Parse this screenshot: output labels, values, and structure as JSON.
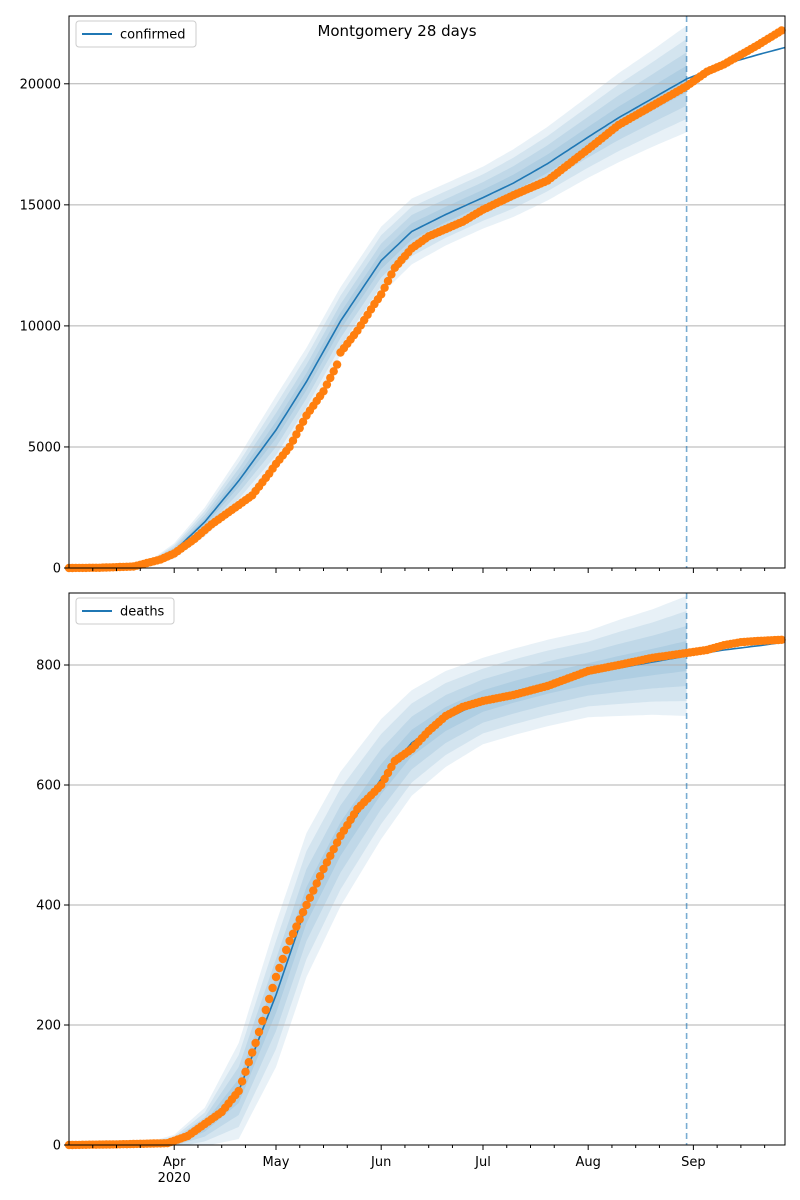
{
  "title": "Montgomery 28 days",
  "colors": {
    "model": "#1f77b4",
    "observed": "#ff7f0e",
    "band": "#1f77b4",
    "grid": "#b0b0b0"
  },
  "x_axis": {
    "start": "2020-03-01",
    "end": "2020-09-28",
    "cutoff": "2020-08-30",
    "major_ticks": [
      {
        "date": "2020-04-01",
        "label": "Apr",
        "year": "2020"
      },
      {
        "date": "2020-05-01",
        "label": "May",
        "year": ""
      },
      {
        "date": "2020-06-01",
        "label": "Jun",
        "year": ""
      },
      {
        "date": "2020-07-01",
        "label": "Jul",
        "year": ""
      },
      {
        "date": "2020-08-01",
        "label": "Aug",
        "year": ""
      },
      {
        "date": "2020-09-01",
        "label": "Sep",
        "year": ""
      }
    ],
    "minor_ticks": [
      "2020-03-08",
      "2020-03-15",
      "2020-03-22",
      "2020-04-08",
      "2020-04-15",
      "2020-04-22",
      "2020-05-08",
      "2020-05-15",
      "2020-05-22",
      "2020-06-08",
      "2020-06-15",
      "2020-06-22",
      "2020-07-08",
      "2020-07-15",
      "2020-07-22",
      "2020-08-08",
      "2020-08-15",
      "2020-08-22",
      "2020-09-08",
      "2020-09-15",
      "2020-09-22"
    ]
  },
  "chart_data": [
    {
      "type": "line",
      "legend": "confirmed",
      "legend_position": "top-left",
      "grid": "horizontal",
      "ylim": [
        0,
        22800
      ],
      "yticks": [
        0,
        5000,
        10000,
        15000,
        20000
      ],
      "ytick_labels": [
        "0",
        "5000",
        "10000",
        "15000",
        "20000"
      ],
      "model": {
        "x": [
          "2020-03-01",
          "2020-03-15",
          "2020-03-25",
          "2020-04-01",
          "2020-04-10",
          "2020-04-20",
          "2020-05-01",
          "2020-05-10",
          "2020-05-20",
          "2020-06-01",
          "2020-06-10",
          "2020-06-20",
          "2020-07-01",
          "2020-07-10",
          "2020-07-20",
          "2020-08-01",
          "2020-08-10",
          "2020-08-20",
          "2020-08-30",
          "2020-09-10",
          "2020-09-20",
          "2020-09-28"
        ],
        "y": [
          0,
          20,
          200,
          700,
          1900,
          3600,
          5700,
          7700,
          10200,
          12700,
          13900,
          14600,
          15300,
          15900,
          16700,
          17800,
          18600,
          19400,
          20200,
          20800,
          21200,
          21500
        ],
        "band_half_widths": [
          [
            0,
            8,
            30,
            80,
            150,
            250,
            350,
            350,
            350,
            350,
            340,
            320,
            320,
            350,
            380,
            420,
            460,
            500,
            550
          ],
          [
            0,
            16,
            60,
            160,
            300,
            500,
            700,
            700,
            700,
            700,
            680,
            640,
            640,
            700,
            760,
            840,
            920,
            1000,
            1100
          ],
          [
            0,
            24,
            90,
            240,
            450,
            750,
            1050,
            1050,
            1050,
            1050,
            1020,
            960,
            960,
            1050,
            1140,
            1260,
            1380,
            1500,
            1650
          ],
          [
            0,
            32,
            120,
            320,
            600,
            1000,
            1400,
            1400,
            1400,
            1400,
            1360,
            1280,
            1280,
            1400,
            1520,
            1680,
            1840,
            2000,
            2200
          ]
        ]
      },
      "observed": {
        "x": [
          "2020-03-01",
          "2020-03-10",
          "2020-03-20",
          "2020-03-28",
          "2020-04-01",
          "2020-04-07",
          "2020-04-12",
          "2020-04-18",
          "2020-04-24",
          "2020-04-29",
          "2020-05-01",
          "2020-05-05",
          "2020-05-10",
          "2020-05-15",
          "2020-05-19",
          "2020-05-20",
          "2020-05-25",
          "2020-05-30",
          "2020-06-01",
          "2020-06-05",
          "2020-06-10",
          "2020-06-15",
          "2020-06-20",
          "2020-06-25",
          "2020-07-01",
          "2020-07-10",
          "2020-07-20",
          "2020-08-01",
          "2020-08-10",
          "2020-08-20",
          "2020-08-30",
          "2020-09-05",
          "2020-09-10",
          "2020-09-15",
          "2020-09-20",
          "2020-09-27"
        ],
        "y": [
          0,
          10,
          60,
          350,
          600,
          1200,
          1800,
          2400,
          3000,
          3900,
          4300,
          5000,
          6300,
          7300,
          8400,
          8900,
          9800,
          10900,
          11300,
          12400,
          13200,
          13700,
          14000,
          14300,
          14800,
          15400,
          16000,
          17300,
          18300,
          19100,
          19900,
          20500,
          20800,
          21200,
          21600,
          22200
        ]
      }
    },
    {
      "type": "line",
      "legend": "deaths",
      "legend_position": "top-left",
      "grid": "horizontal",
      "ylim": [
        0,
        920
      ],
      "yticks": [
        0,
        200,
        400,
        600,
        800
      ],
      "ytick_labels": [
        "0",
        "200",
        "400",
        "600",
        "800"
      ],
      "model": {
        "x": [
          "2020-03-01",
          "2020-03-25",
          "2020-04-01",
          "2020-04-10",
          "2020-04-20",
          "2020-05-01",
          "2020-05-10",
          "2020-05-20",
          "2020-06-01",
          "2020-06-10",
          "2020-06-20",
          "2020-07-01",
          "2020-07-10",
          "2020-07-20",
          "2020-08-01",
          "2020-08-10",
          "2020-08-20",
          "2020-08-30",
          "2020-09-10",
          "2020-09-20",
          "2020-09-28"
        ],
        "y": [
          0,
          2,
          5,
          30,
          90,
          250,
          400,
          510,
          610,
          670,
          710,
          740,
          755,
          770,
          785,
          795,
          805,
          815,
          825,
          832,
          838
        ],
        "band_half_widths": [
          [
            0,
            1,
            3,
            8,
            20,
            30,
            30,
            28,
            25,
            22,
            20,
            18,
            18,
            18,
            18,
            20,
            22,
            25
          ],
          [
            0,
            2,
            6,
            16,
            40,
            60,
            60,
            56,
            50,
            44,
            40,
            36,
            36,
            36,
            36,
            40,
            44,
            50
          ],
          [
            0,
            3,
            9,
            24,
            60,
            90,
            90,
            84,
            75,
            66,
            60,
            54,
            54,
            54,
            54,
            60,
            66,
            75
          ],
          [
            0,
            4,
            12,
            32,
            80,
            120,
            120,
            112,
            100,
            88,
            80,
            72,
            72,
            72,
            72,
            80,
            88,
            100
          ]
        ]
      },
      "observed": {
        "x": [
          "2020-03-01",
          "2020-03-15",
          "2020-03-30",
          "2020-04-05",
          "2020-04-10",
          "2020-04-15",
          "2020-04-20",
          "2020-04-25",
          "2020-05-01",
          "2020-05-05",
          "2020-05-10",
          "2020-05-15",
          "2020-05-20",
          "2020-05-25",
          "2020-06-01",
          "2020-06-05",
          "2020-06-10",
          "2020-06-15",
          "2020-06-20",
          "2020-06-25",
          "2020-07-01",
          "2020-07-10",
          "2020-07-20",
          "2020-08-01",
          "2020-08-10",
          "2020-08-20",
          "2020-08-30",
          "2020-09-05",
          "2020-09-10",
          "2020-09-15",
          "2020-09-20",
          "2020-09-27"
        ],
        "y": [
          0,
          1,
          3,
          15,
          35,
          55,
          90,
          170,
          280,
          340,
          400,
          460,
          515,
          560,
          600,
          640,
          660,
          690,
          715,
          730,
          740,
          750,
          765,
          790,
          800,
          812,
          820,
          825,
          833,
          838,
          840,
          842
        ]
      }
    }
  ]
}
